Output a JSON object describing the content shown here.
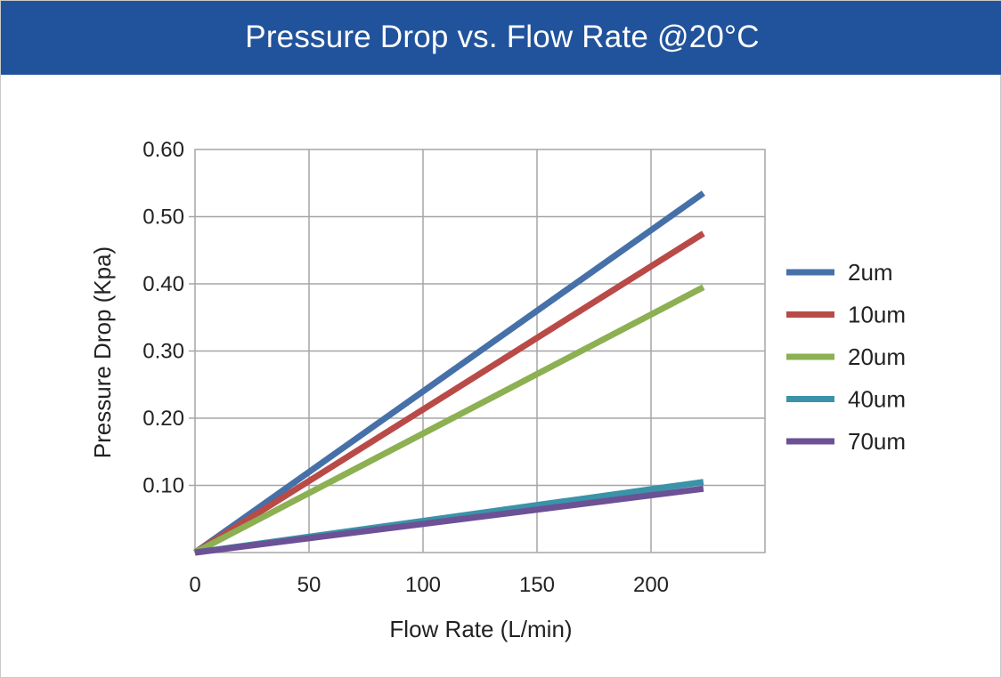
{
  "header": {
    "title": "Pressure Drop vs.  Flow Rate @20°C"
  },
  "colors": {
    "header_bg": "#21539c",
    "grid": "#a6a6a6",
    "series": {
      "2um": "#4670a8",
      "10um": "#b94a47",
      "20um": "#8cb052",
      "40um": "#3a93a8",
      "70um": "#6c5196"
    }
  },
  "chart_data": {
    "type": "line",
    "title": "Pressure Drop vs.  Flow Rate @20°C",
    "xlabel": "Flow Rate (L/min)",
    "ylabel": "Pressure Drop (Kpa)",
    "xlim": [
      0,
      250
    ],
    "ylim": [
      0,
      0.6
    ],
    "x_ticks": [
      {
        "value": 0,
        "label": "0"
      },
      {
        "value": 50,
        "label": "50"
      },
      {
        "value": 100,
        "label": "100"
      },
      {
        "value": 150,
        "label": "150"
      },
      {
        "value": 200,
        "label": "200"
      }
    ],
    "y_ticks": [
      {
        "value": 0.1,
        "label": "0.10"
      },
      {
        "value": 0.2,
        "label": "0.20"
      },
      {
        "value": 0.3,
        "label": "0.30"
      },
      {
        "value": 0.4,
        "label": "0.40"
      },
      {
        "value": 0.5,
        "label": "0.50"
      },
      {
        "value": 0.6,
        "label": "0.60"
      }
    ],
    "grid": true,
    "legend_position": "right",
    "series": [
      {
        "name": "2um",
        "color": "#4670a8",
        "x": [
          0,
          223
        ],
        "y": [
          0,
          0.535
        ]
      },
      {
        "name": "10um",
        "color": "#b94a47",
        "x": [
          0,
          223
        ],
        "y": [
          0,
          0.475
        ]
      },
      {
        "name": "20um",
        "color": "#8cb052",
        "x": [
          0,
          223
        ],
        "y": [
          0,
          0.395
        ]
      },
      {
        "name": "40um",
        "color": "#3a93a8",
        "x": [
          0,
          223
        ],
        "y": [
          0,
          0.105
        ]
      },
      {
        "name": "70um",
        "color": "#6c5196",
        "x": [
          0,
          223
        ],
        "y": [
          0,
          0.095
        ]
      }
    ]
  }
}
